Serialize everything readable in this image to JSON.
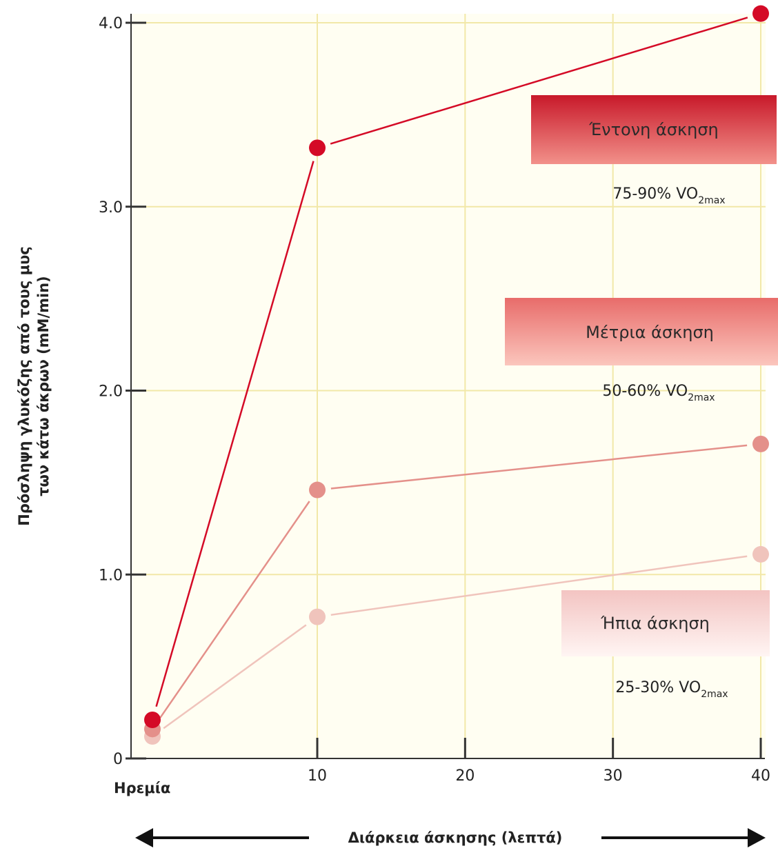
{
  "chart_data": {
    "type": "line",
    "xlabel": "Διάρκεια άσκησης (λεπτά)",
    "ylabel_line1": "Πρόσληψη γλυκόζης από τους μυς",
    "ylabel_line2": "των κάτω άκρων (mM/min)",
    "x_rest_label": "Ηρεμία",
    "x": [
      0,
      10,
      40
    ],
    "xlim": [
      0,
      40
    ],
    "ylim": [
      0,
      4.0
    ],
    "x_ticks": [
      {
        "value": 10,
        "label": "10"
      },
      {
        "value": 20,
        "label": "20"
      },
      {
        "value": 30,
        "label": "30"
      },
      {
        "value": 40,
        "label": "40"
      }
    ],
    "y_ticks": [
      {
        "value": 0,
        "label": "0"
      },
      {
        "value": 1,
        "label": "1.0"
      },
      {
        "value": 2,
        "label": "2.0"
      },
      {
        "value": 3,
        "label": "3.0"
      },
      {
        "value": 4,
        "label": "4.0"
      }
    ],
    "grid": true,
    "series": [
      {
        "name": "Ήπια άσκηση",
        "intensity": "25-30% VO",
        "intensity_sub": "2max",
        "color": "#f0c4bc",
        "values": [
          0.12,
          0.77,
          1.11
        ]
      },
      {
        "name": "Μέτρια άσκηση",
        "intensity": "50-60% VO",
        "intensity_sub": "2max",
        "color": "#e4908a",
        "values": [
          0.16,
          1.46,
          1.71
        ]
      },
      {
        "name": "Έντονη άσκηση",
        "intensity": "75-90% VO",
        "intensity_sub": "2max",
        "color": "#d40a26",
        "values": [
          0.21,
          3.32,
          4.05
        ]
      }
    ]
  },
  "colors": {
    "grid": "#f2e8a8",
    "background": "#fffef2",
    "axis": "#333333",
    "box_intense": "#cc2a35",
    "box_moderate": "#e8807a",
    "box_mild": "#f3c8c4"
  }
}
